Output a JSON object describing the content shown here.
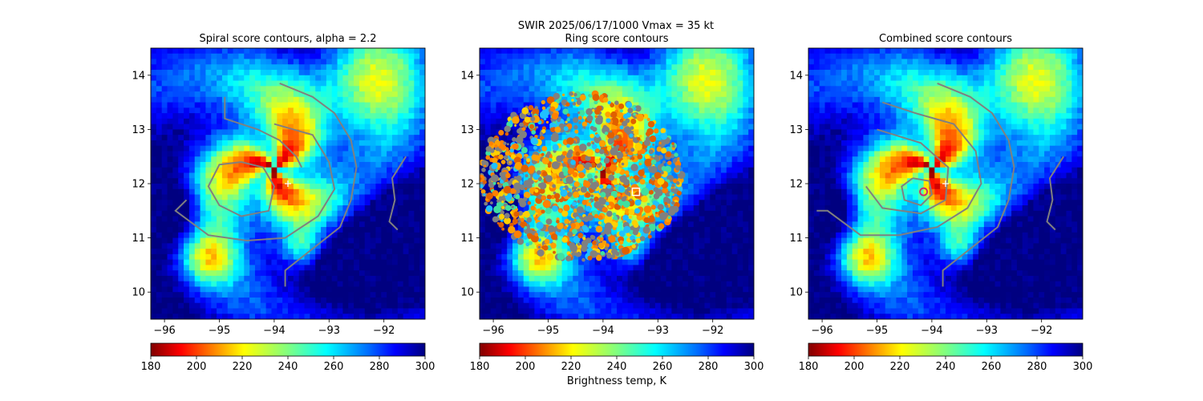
{
  "figure": {
    "suptitle_line1": "SWIR  2025/06/17/1000    Vmax = 35 kt"
  },
  "chart_data": [
    {
      "type": "heatmap",
      "title": "Spiral score contours, alpha =  2.2",
      "xlim": [
        -96.25,
        -91.25
      ],
      "ylim": [
        9.5,
        14.5
      ],
      "xticks": [
        -96,
        -95,
        -94,
        -93,
        -92
      ],
      "xtick_labels": [
        "−96",
        "−95",
        "−94",
        "−93",
        "−92"
      ],
      "yticks": [
        10,
        11,
        12,
        13,
        14
      ],
      "ytick_labels": [
        "10",
        "11",
        "12",
        "13",
        "14"
      ],
      "colorbar": {
        "ticks": [
          180,
          200,
          220,
          240,
          260,
          280,
          300
        ],
        "range": [
          180,
          300
        ],
        "label": ""
      },
      "markers": [
        {
          "kind": "plus",
          "color": "#ffffff",
          "lon": -93.75,
          "lat": 12.0
        }
      ]
    },
    {
      "type": "heatmap",
      "title": "Ring score contours",
      "xlim": [
        -96.25,
        -91.25
      ],
      "ylim": [
        9.5,
        14.5
      ],
      "xticks": [
        -96,
        -95,
        -94,
        -93,
        -92
      ],
      "xtick_labels": [
        "−96",
        "−95",
        "−94",
        "−93",
        "−92"
      ],
      "yticks": [
        10,
        11,
        12,
        13,
        14
      ],
      "ytick_labels": [
        "10",
        "11",
        "12",
        "13",
        "14"
      ],
      "colorbar": {
        "ticks": [
          180,
          200,
          220,
          240,
          260,
          280,
          300
        ],
        "range": [
          180,
          300
        ],
        "label": "Brightness temp, K"
      },
      "markers": [
        {
          "kind": "square",
          "color": "#ffffff",
          "lon": -93.4,
          "lat": 11.85
        }
      ]
    },
    {
      "type": "heatmap",
      "title": "Combined score contours",
      "xlim": [
        -96.25,
        -91.25
      ],
      "ylim": [
        9.5,
        14.5
      ],
      "xticks": [
        -96,
        -95,
        -94,
        -93,
        -92
      ],
      "xtick_labels": [
        "−96",
        "−95",
        "−94",
        "−93",
        "−92"
      ],
      "yticks": [
        10,
        11,
        12,
        13,
        14
      ],
      "ytick_labels": [
        "10",
        "11",
        "12",
        "13",
        "14"
      ],
      "colorbar": {
        "ticks": [
          180,
          200,
          220,
          240,
          260,
          280,
          300
        ],
        "range": [
          180,
          300
        ],
        "label": ""
      },
      "markers": [
        {
          "kind": "circle",
          "color": "#cc2a6e",
          "lon": -94.15,
          "lat": 11.85
        },
        {
          "kind": "plus",
          "color": "#ffffff",
          "lon": -93.75,
          "lat": 12.0
        }
      ]
    }
  ],
  "colors": {
    "contour": "#808080",
    "colormap_reversed_jet": [
      "#800000",
      "#ff0000",
      "#ff8000",
      "#ffff00",
      "#80ff80",
      "#00ffff",
      "#0080ff",
      "#0000ff",
      "#000080"
    ]
  }
}
